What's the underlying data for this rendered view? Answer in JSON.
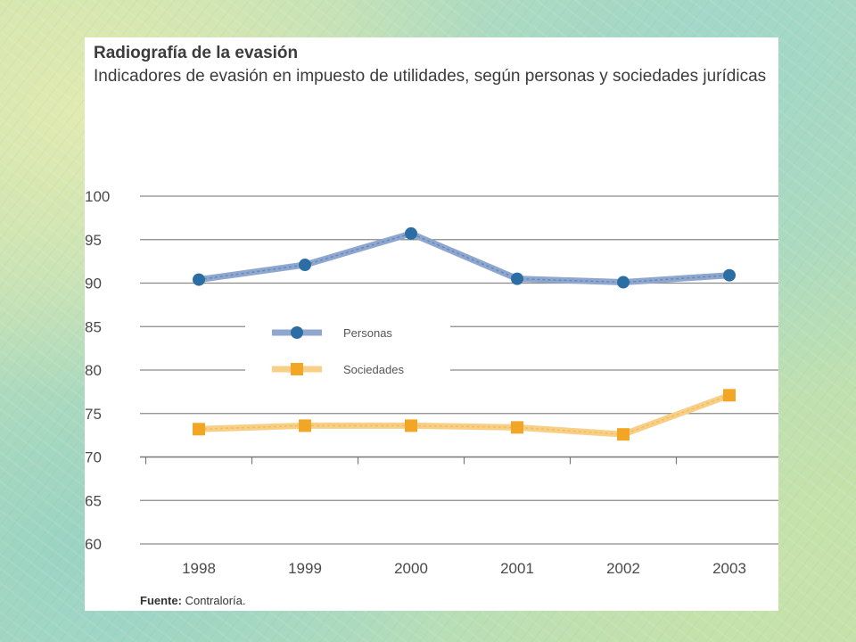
{
  "slide": {
    "title": "Radiografía de la evasión",
    "subtitle": "Indicadores de evasión en impuesto de utilidades, según personas y sociedades jurídicas",
    "source_label": "Fuente:",
    "source_text": "Contraloría."
  },
  "chart_data": {
    "type": "line",
    "title": "Radiografía de la evasión",
    "subtitle": "Indicadores de evasión en impuesto de utilidades, según personas y sociedades jurídicas",
    "xlabel": "",
    "ylabel": "",
    "categories": [
      "1998",
      "1999",
      "2000",
      "2001",
      "2002",
      "2003"
    ],
    "ylim": [
      60,
      100
    ],
    "yticks": [
      100,
      95,
      90,
      85,
      80,
      75,
      70,
      65,
      60
    ],
    "grid": true,
    "legend_position": "center-left",
    "series": [
      {
        "name": "Personas",
        "values": [
          90.4,
          92.1,
          95.7,
          90.5,
          90.1,
          90.9
        ],
        "color": "#2c6ea3",
        "line_color": "#8fa6cf",
        "marker": "circle"
      },
      {
        "name": "Sociedades",
        "values": [
          73.2,
          73.6,
          73.6,
          73.4,
          72.6,
          77.1
        ],
        "color": "#f2a626",
        "line_color": "#f8cf86",
        "marker": "square"
      }
    ]
  }
}
